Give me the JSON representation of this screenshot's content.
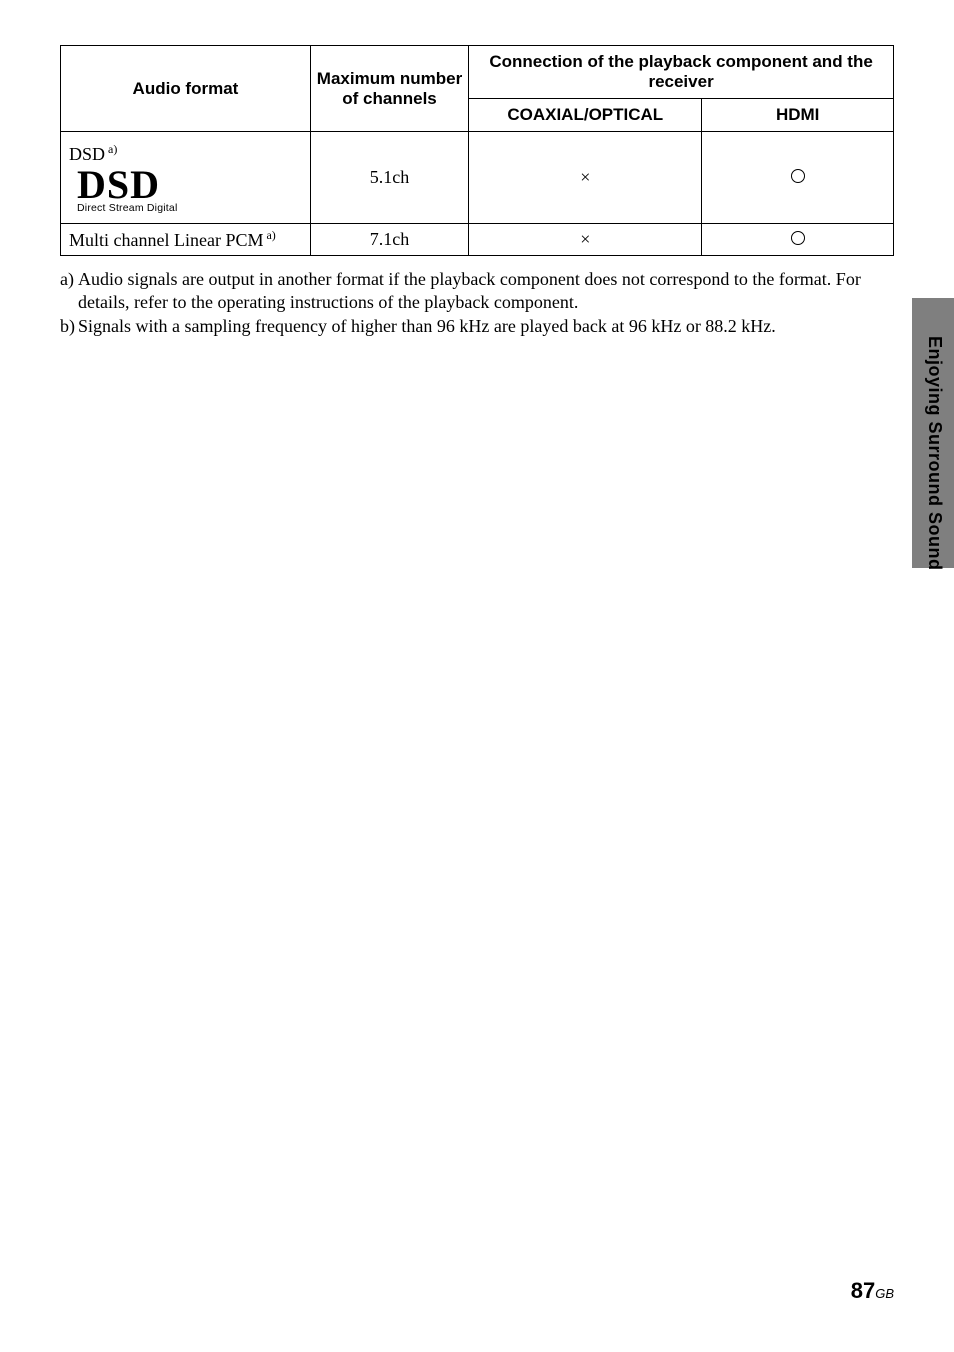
{
  "table": {
    "header": {
      "audio_format": "Audio format",
      "max_channels": "Maximum number of channels",
      "connection": "Connection of the playback component and the receiver",
      "coaxial_optical": "COAXIAL/OPTICAL",
      "hdmi": "HDMI"
    },
    "rows": {
      "dsd": {
        "label_prefix": "DSD",
        "label_sup": "a)",
        "logo_big": "DSD",
        "logo_small": "Direct Stream Digital",
        "max": "5.1ch",
        "coax": "×",
        "hdmi_supported": true
      },
      "pcm": {
        "label": "Multi channel Linear PCM",
        "label_sup": "a)",
        "max": "7.1ch",
        "coax": "×",
        "hdmi_supported": true
      }
    }
  },
  "footnotes": {
    "a": {
      "marker": "a)",
      "text": "Audio signals are output in another format if the playback component does not correspond to the format. For details, refer to the operating instructions of the playback component."
    },
    "b": {
      "marker": "b)",
      "text": "Signals with a sampling frequency of higher than 96 kHz are played back at 96 kHz or 88.2 kHz."
    }
  },
  "side_label": "Enjoying Surround Sound",
  "page": {
    "number": "87",
    "suffix": "GB"
  }
}
